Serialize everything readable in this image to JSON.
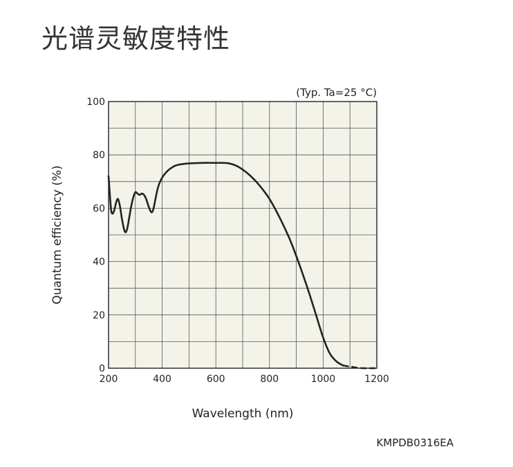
{
  "page": {
    "title": "光谱灵敏度特性",
    "figure_code": "KMPDB0316EA"
  },
  "colors": {
    "plot_background": "#f3f3ea",
    "grid": "#555555",
    "curve": "#222222"
  },
  "chart_data": {
    "type": "line",
    "title": "",
    "annotation": "(Typ. Ta=25 °C)",
    "xlabel": "Wavelength (nm)",
    "ylabel": "Quantum efficiency (%)",
    "xlim": [
      200,
      1200
    ],
    "ylim": [
      0,
      100
    ],
    "x_ticks": [
      200,
      400,
      600,
      800,
      1000,
      1200
    ],
    "y_ticks": [
      0,
      20,
      40,
      60,
      80,
      100
    ],
    "x_grid_step": 100,
    "y_grid_step": 10,
    "grid": true,
    "legend": "none",
    "series": [
      {
        "style": "solid",
        "points": [
          [
            200,
            72
          ],
          [
            205,
            65
          ],
          [
            210,
            59
          ],
          [
            216,
            58
          ],
          [
            222,
            59.5
          ],
          [
            228,
            62
          ],
          [
            235,
            63.5
          ],
          [
            242,
            61
          ],
          [
            250,
            56
          ],
          [
            258,
            52
          ],
          [
            264,
            51
          ],
          [
            270,
            52.5
          ],
          [
            278,
            57
          ],
          [
            285,
            61
          ],
          [
            292,
            64
          ],
          [
            300,
            66
          ],
          [
            308,
            65.5
          ],
          [
            316,
            65
          ],
          [
            324,
            65.5
          ],
          [
            332,
            65
          ],
          [
            340,
            63.5
          ],
          [
            350,
            60.5
          ],
          [
            356,
            59
          ],
          [
            362,
            58.5
          ],
          [
            368,
            60
          ],
          [
            375,
            63.5
          ],
          [
            385,
            68
          ],
          [
            400,
            71.5
          ],
          [
            420,
            74
          ],
          [
            440,
            75.5
          ],
          [
            460,
            76.3
          ],
          [
            500,
            76.8
          ],
          [
            550,
            77
          ],
          [
            600,
            77
          ],
          [
            625,
            77
          ],
          [
            650,
            76.8
          ],
          [
            675,
            76
          ],
          [
            700,
            74.5
          ],
          [
            725,
            72.5
          ],
          [
            750,
            70
          ],
          [
            775,
            67
          ],
          [
            800,
            63.5
          ],
          [
            825,
            59
          ],
          [
            850,
            54
          ],
          [
            875,
            48.5
          ],
          [
            900,
            42
          ],
          [
            925,
            35
          ],
          [
            950,
            27.5
          ],
          [
            975,
            19.5
          ],
          [
            1000,
            11.5
          ],
          [
            1025,
            5.5
          ],
          [
            1050,
            2.5
          ],
          [
            1075,
            1
          ]
        ]
      },
      {
        "style": "dashed",
        "points": [
          [
            1075,
            1
          ],
          [
            1100,
            0.6
          ],
          [
            1125,
            0.2
          ],
          [
            1150,
            0
          ],
          [
            1200,
            0
          ]
        ]
      }
    ]
  }
}
